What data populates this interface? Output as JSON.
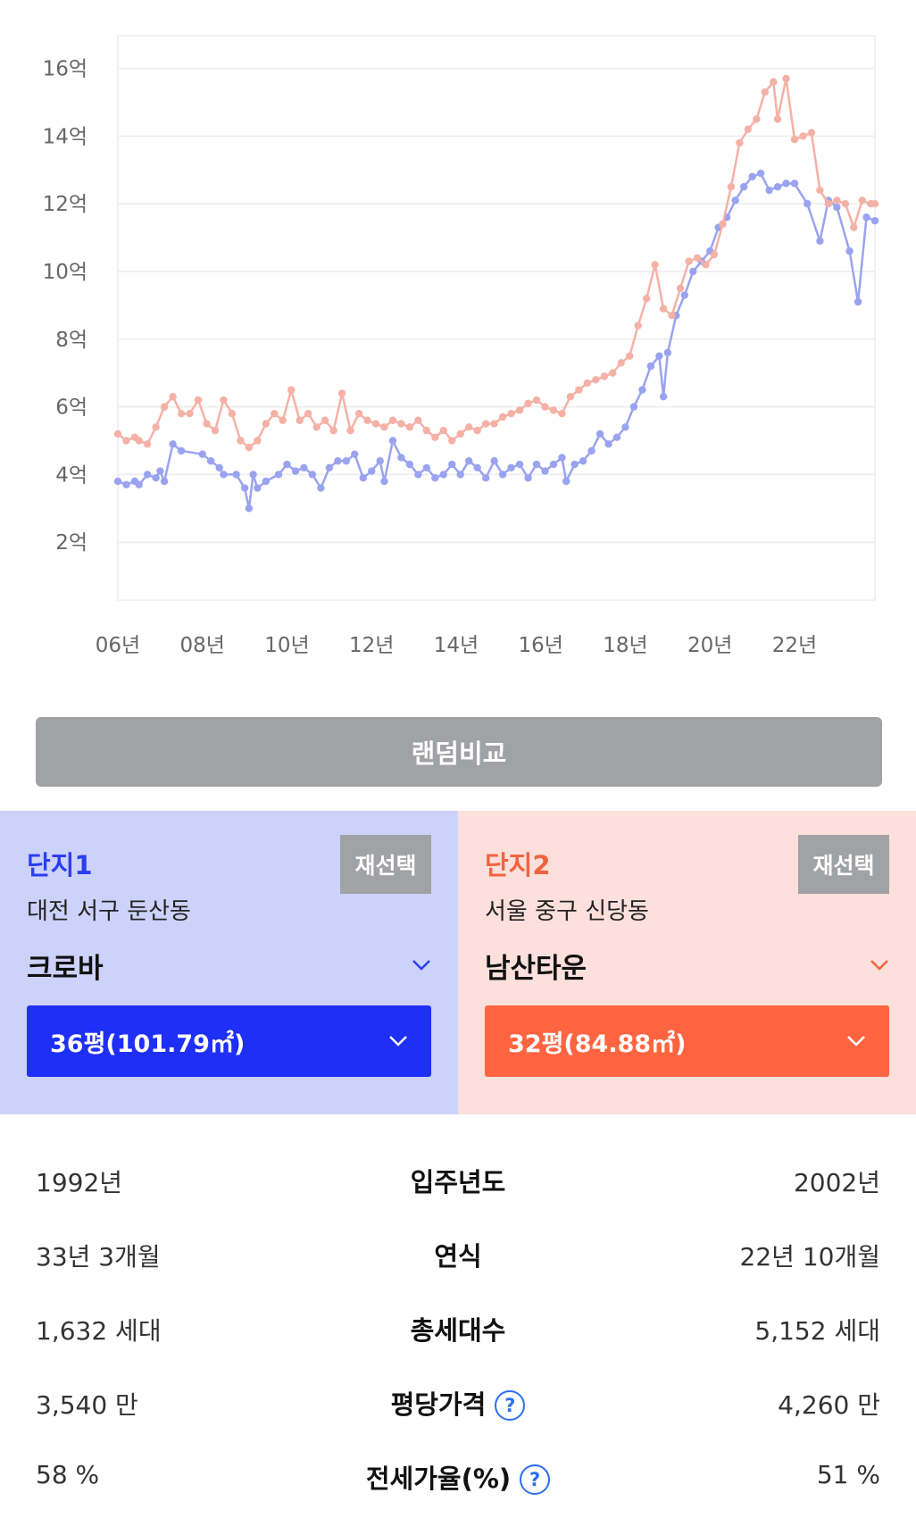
{
  "chart_data": {
    "type": "line",
    "y_ticks": [
      "2억",
      "4억",
      "6억",
      "8억",
      "10억",
      "12억",
      "14억",
      "16억"
    ],
    "x_ticks": [
      "06년",
      "08년",
      "10년",
      "12년",
      "14년",
      "16년",
      "18년",
      "20년",
      "22년"
    ],
    "ylim": [
      0,
      17
    ],
    "xlim": [
      2006.0,
      2023.9
    ],
    "series": [
      {
        "name": "크로바",
        "color": "#9aa3f0",
        "points": [
          [
            2006.0,
            3.8
          ],
          [
            2006.2,
            3.7
          ],
          [
            2006.4,
            3.8
          ],
          [
            2006.5,
            3.7
          ],
          [
            2006.7,
            4.0
          ],
          [
            2006.9,
            3.9
          ],
          [
            2007.0,
            4.1
          ],
          [
            2007.1,
            3.8
          ],
          [
            2007.3,
            4.9
          ],
          [
            2007.5,
            4.7
          ],
          [
            2008.0,
            4.6
          ],
          [
            2008.2,
            4.4
          ],
          [
            2008.4,
            4.2
          ],
          [
            2008.5,
            4.0
          ],
          [
            2008.8,
            4.0
          ],
          [
            2009.0,
            3.6
          ],
          [
            2009.1,
            3.0
          ],
          [
            2009.2,
            4.0
          ],
          [
            2009.3,
            3.6
          ],
          [
            2009.5,
            3.8
          ],
          [
            2009.8,
            4.0
          ],
          [
            2010.0,
            4.3
          ],
          [
            2010.2,
            4.1
          ],
          [
            2010.4,
            4.2
          ],
          [
            2010.6,
            4.0
          ],
          [
            2010.8,
            3.6
          ],
          [
            2011.0,
            4.2
          ],
          [
            2011.2,
            4.4
          ],
          [
            2011.4,
            4.4
          ],
          [
            2011.6,
            4.6
          ],
          [
            2011.8,
            3.9
          ],
          [
            2012.0,
            4.1
          ],
          [
            2012.2,
            4.4
          ],
          [
            2012.3,
            3.8
          ],
          [
            2012.5,
            5.0
          ],
          [
            2012.7,
            4.5
          ],
          [
            2012.9,
            4.3
          ],
          [
            2013.1,
            4.0
          ],
          [
            2013.3,
            4.2
          ],
          [
            2013.5,
            3.9
          ],
          [
            2013.7,
            4.0
          ],
          [
            2013.9,
            4.3
          ],
          [
            2014.1,
            4.0
          ],
          [
            2014.3,
            4.4
          ],
          [
            2014.5,
            4.2
          ],
          [
            2014.7,
            3.9
          ],
          [
            2014.9,
            4.4
          ],
          [
            2015.1,
            4.0
          ],
          [
            2015.3,
            4.2
          ],
          [
            2015.5,
            4.3
          ],
          [
            2015.7,
            3.9
          ],
          [
            2015.9,
            4.3
          ],
          [
            2016.1,
            4.1
          ],
          [
            2016.3,
            4.3
          ],
          [
            2016.5,
            4.5
          ],
          [
            2016.6,
            3.8
          ],
          [
            2016.8,
            4.3
          ],
          [
            2017.0,
            4.4
          ],
          [
            2017.2,
            4.7
          ],
          [
            2017.4,
            5.2
          ],
          [
            2017.6,
            4.9
          ],
          [
            2017.8,
            5.1
          ],
          [
            2018.0,
            5.4
          ],
          [
            2018.2,
            6.0
          ],
          [
            2018.4,
            6.5
          ],
          [
            2018.6,
            7.2
          ],
          [
            2018.8,
            7.5
          ],
          [
            2018.9,
            6.3
          ],
          [
            2019.0,
            7.6
          ],
          [
            2019.2,
            8.7
          ],
          [
            2019.4,
            9.3
          ],
          [
            2019.6,
            10.0
          ],
          [
            2019.8,
            10.3
          ],
          [
            2020.0,
            10.6
          ],
          [
            2020.2,
            11.3
          ],
          [
            2020.4,
            11.6
          ],
          [
            2020.6,
            12.1
          ],
          [
            2020.8,
            12.5
          ],
          [
            2021.0,
            12.8
          ],
          [
            2021.2,
            12.9
          ],
          [
            2021.4,
            12.4
          ],
          [
            2021.6,
            12.5
          ],
          [
            2021.8,
            12.6
          ],
          [
            2022.0,
            12.6
          ],
          [
            2022.3,
            12.0
          ],
          [
            2022.6,
            10.9
          ],
          [
            2022.8,
            12.1
          ],
          [
            2023.0,
            11.9
          ],
          [
            2023.3,
            10.6
          ],
          [
            2023.5,
            9.1
          ],
          [
            2023.7,
            11.6
          ],
          [
            2023.9,
            11.5
          ]
        ]
      },
      {
        "name": "남산타운",
        "color": "#f5b1a6",
        "points": [
          [
            2006.0,
            5.2
          ],
          [
            2006.2,
            5.0
          ],
          [
            2006.4,
            5.1
          ],
          [
            2006.5,
            5.0
          ],
          [
            2006.7,
            4.9
          ],
          [
            2006.9,
            5.4
          ],
          [
            2007.1,
            6.0
          ],
          [
            2007.3,
            6.3
          ],
          [
            2007.5,
            5.8
          ],
          [
            2007.7,
            5.8
          ],
          [
            2007.9,
            6.2
          ],
          [
            2008.1,
            5.5
          ],
          [
            2008.3,
            5.3
          ],
          [
            2008.5,
            6.2
          ],
          [
            2008.7,
            5.8
          ],
          [
            2008.9,
            5.0
          ],
          [
            2009.1,
            4.8
          ],
          [
            2009.3,
            5.0
          ],
          [
            2009.5,
            5.5
          ],
          [
            2009.7,
            5.8
          ],
          [
            2009.9,
            5.6
          ],
          [
            2010.1,
            6.5
          ],
          [
            2010.3,
            5.6
          ],
          [
            2010.5,
            5.8
          ],
          [
            2010.7,
            5.4
          ],
          [
            2010.9,
            5.6
          ],
          [
            2011.1,
            5.3
          ],
          [
            2011.3,
            6.4
          ],
          [
            2011.5,
            5.3
          ],
          [
            2011.7,
            5.8
          ],
          [
            2011.9,
            5.6
          ],
          [
            2012.1,
            5.5
          ],
          [
            2012.3,
            5.4
          ],
          [
            2012.5,
            5.6
          ],
          [
            2012.7,
            5.5
          ],
          [
            2012.9,
            5.4
          ],
          [
            2013.1,
            5.6
          ],
          [
            2013.3,
            5.3
          ],
          [
            2013.5,
            5.1
          ],
          [
            2013.7,
            5.3
          ],
          [
            2013.9,
            5.0
          ],
          [
            2014.1,
            5.2
          ],
          [
            2014.3,
            5.4
          ],
          [
            2014.5,
            5.3
          ],
          [
            2014.7,
            5.5
          ],
          [
            2014.9,
            5.5
          ],
          [
            2015.1,
            5.7
          ],
          [
            2015.3,
            5.8
          ],
          [
            2015.5,
            5.9
          ],
          [
            2015.7,
            6.1
          ],
          [
            2015.9,
            6.2
          ],
          [
            2016.1,
            6.0
          ],
          [
            2016.3,
            5.9
          ],
          [
            2016.5,
            5.8
          ],
          [
            2016.7,
            6.3
          ],
          [
            2016.9,
            6.5
          ],
          [
            2017.1,
            6.7
          ],
          [
            2017.3,
            6.8
          ],
          [
            2017.5,
            6.9
          ],
          [
            2017.7,
            7.0
          ],
          [
            2017.9,
            7.3
          ],
          [
            2018.1,
            7.5
          ],
          [
            2018.3,
            8.4
          ],
          [
            2018.5,
            9.2
          ],
          [
            2018.7,
            10.2
          ],
          [
            2018.9,
            8.9
          ],
          [
            2019.1,
            8.7
          ],
          [
            2019.3,
            9.5
          ],
          [
            2019.5,
            10.3
          ],
          [
            2019.7,
            10.4
          ],
          [
            2019.9,
            10.2
          ],
          [
            2020.1,
            10.5
          ],
          [
            2020.3,
            11.4
          ],
          [
            2020.5,
            12.5
          ],
          [
            2020.7,
            13.8
          ],
          [
            2020.9,
            14.2
          ],
          [
            2021.1,
            14.5
          ],
          [
            2021.3,
            15.3
          ],
          [
            2021.5,
            15.6
          ],
          [
            2021.6,
            14.5
          ],
          [
            2021.8,
            15.7
          ],
          [
            2022.0,
            13.9
          ],
          [
            2022.2,
            14.0
          ],
          [
            2022.4,
            14.1
          ],
          [
            2022.6,
            12.4
          ],
          [
            2022.8,
            12.0
          ],
          [
            2023.0,
            12.1
          ],
          [
            2023.2,
            12.0
          ],
          [
            2023.4,
            11.3
          ],
          [
            2023.6,
            12.1
          ],
          [
            2023.8,
            12.0
          ],
          [
            2023.9,
            12.0
          ]
        ]
      }
    ]
  },
  "random_button_label": "랜덤비교",
  "panel1": {
    "title": "단지1",
    "reselect_label": "재선택",
    "region": "대전 서구 둔산동",
    "apt_name": "크로바",
    "size": "36평(101.79㎡)"
  },
  "panel2": {
    "title": "단지2",
    "reselect_label": "재선택",
    "region": "서울 중구 신당동",
    "apt_name": "남산타운",
    "size": "32평(84.88㎡)"
  },
  "compare": {
    "rows": [
      {
        "left": "1992년",
        "label": "입주년도",
        "right": "2002년"
      },
      {
        "left": "33년 3개월",
        "label": "연식",
        "right": "22년 10개월"
      },
      {
        "left": "1,632 세대",
        "label": "총세대수",
        "right": "5,152 세대"
      },
      {
        "left": "3,540 만",
        "label": "평당가격",
        "right": "4,260 만"
      },
      {
        "left": "58 %",
        "label": "전세가율(%)",
        "right": "51 %"
      }
    ],
    "help_glyph": "?"
  },
  "icons": {
    "chevron": "chevron-down-icon",
    "help": "question-circle-icon"
  },
  "colors": {
    "series1": "#9aa3f0",
    "series2": "#f5b1a6",
    "panel1_bg": "#cdd2fb",
    "panel2_bg": "#fddfdb",
    "panel1_accent": "#1e2ff7",
    "panel2_accent": "#ff6440"
  }
}
